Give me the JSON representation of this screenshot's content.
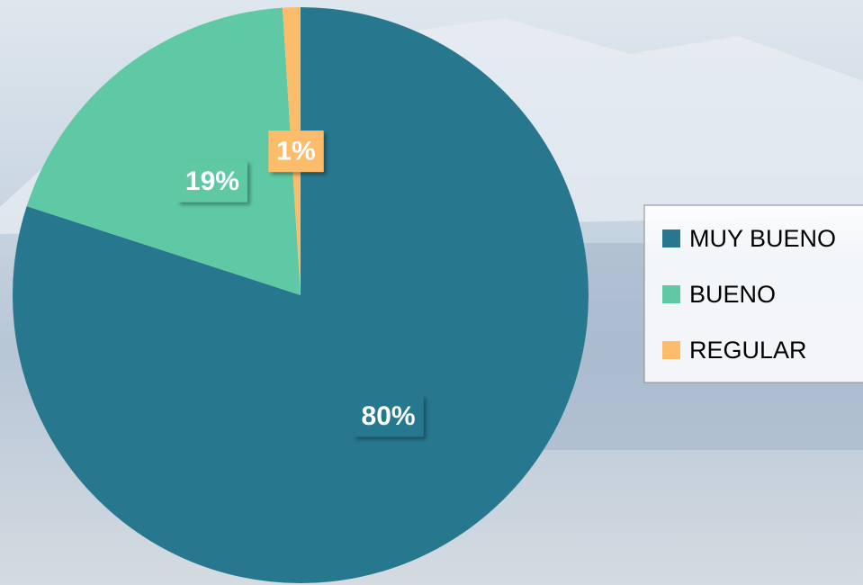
{
  "chart_data": {
    "type": "pie",
    "categories": [
      "MUY BUENO",
      "BUENO",
      "REGULAR"
    ],
    "values": [
      80,
      19,
      1
    ],
    "value_labels": [
      "80%",
      "19%",
      "1%"
    ],
    "colors": [
      "#27788e",
      "#5ec9a4",
      "#fbbd6c"
    ],
    "legend": "right"
  }
}
